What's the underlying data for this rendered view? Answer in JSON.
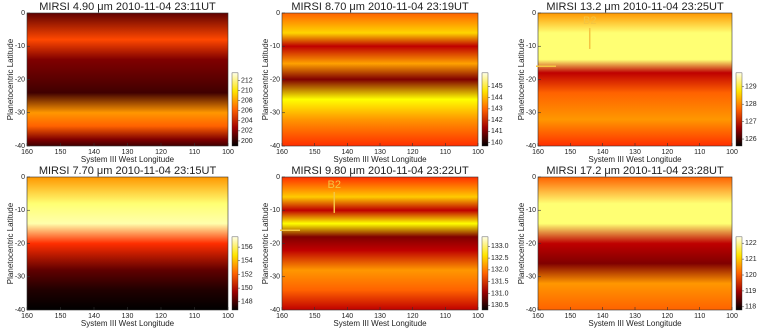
{
  "chart_data": [
    {
      "type": "heatmap",
      "title": "MIRSI 4.90 μm 2010-11-04 23:11UT",
      "xlabel": "System III West Longitude",
      "ylabel": "Planetocentric Latitude",
      "xlim": [
        160,
        100
      ],
      "xticks": [
        160,
        150,
        140,
        130,
        120,
        110,
        100
      ],
      "ylim": [
        -40,
        0
      ],
      "yticks": [
        0,
        -10,
        -20,
        -30,
        -40
      ],
      "clim": [
        199,
        213.5
      ],
      "cticks": [
        200,
        202,
        204,
        206,
        208,
        210,
        212
      ]
    },
    {
      "type": "heatmap",
      "title": "MIRSI 8.70 μm 2010-11-04 23:19UT",
      "xlabel": "System III West Longitude",
      "ylabel": "Planetocentric Latitude",
      "xlim": [
        160,
        100
      ],
      "xticks": [
        160,
        150,
        140,
        130,
        120,
        110,
        100
      ],
      "ylim": [
        -40,
        0
      ],
      "yticks": [
        0,
        -10,
        -20,
        -30,
        -40
      ],
      "clim": [
        139.7,
        146.2
      ],
      "cticks": [
        140,
        141,
        142,
        143,
        144,
        145
      ]
    },
    {
      "type": "heatmap",
      "title": "MIRSI 13.2 μm 2010-11-04 23:25UT",
      "xlabel": "System III West Longitude",
      "ylabel": "Planetocentric Latitude",
      "xlim": [
        160,
        100
      ],
      "xticks": [
        160,
        150,
        140,
        130,
        120,
        110,
        100
      ],
      "ylim": [
        -40,
        0
      ],
      "yticks": [
        0,
        -10,
        -20,
        -30,
        -40
      ],
      "clim": [
        125.6,
        129.8
      ],
      "cticks": [
        126,
        127,
        128,
        129
      ],
      "annotation": "B2"
    },
    {
      "type": "heatmap",
      "title": "MIRSI 7.70 μm 2010-11-04 23:15UT",
      "xlabel": "System III West Longitude",
      "ylabel": "Planetocentric Latitude",
      "xlim": [
        160,
        100
      ],
      "xticks": [
        160,
        150,
        140,
        130,
        120,
        110,
        100
      ],
      "ylim": [
        -40,
        0
      ],
      "yticks": [
        0,
        -10,
        -20,
        -30,
        -40
      ],
      "clim": [
        146.8,
        157.5
      ],
      "cticks": [
        148,
        150,
        152,
        154,
        156
      ]
    },
    {
      "type": "heatmap",
      "title": "MIRSI 9.80 μm 2010-11-04 23:22UT",
      "xlabel": "System III West Longitude",
      "ylabel": "Planetocentric Latitude",
      "xlim": [
        160,
        100
      ],
      "xticks": [
        160,
        150,
        140,
        130,
        120,
        110,
        100
      ],
      "ylim": [
        -40,
        0
      ],
      "yticks": [
        0,
        -10,
        -20,
        -30,
        -40
      ],
      "clim": [
        130.3,
        133.4
      ],
      "cticks": [
        130.5,
        {
          "value": 131,
          "label": "131.0"
        },
        131.5,
        {
          "value": 132,
          "label": "132.0"
        },
        132.5,
        {
          "value": 133,
          "label": "133.0"
        }
      ],
      "annotation": "B2"
    },
    {
      "type": "heatmap",
      "title": "MIRSI 17.2 μm 2010-11-04 23:28UT",
      "xlabel": "System III West Longitude",
      "ylabel": "Planetocentric Latitude",
      "xlim": [
        160,
        100
      ],
      "xticks": [
        160,
        150,
        140,
        130,
        120,
        110,
        100
      ],
      "ylim": [
        -40,
        0
      ],
      "yticks": [
        0,
        -10,
        -20,
        -30,
        -40
      ],
      "clim": [
        117.8,
        122.4
      ],
      "cticks": [
        118,
        119,
        120,
        121,
        122
      ]
    }
  ]
}
